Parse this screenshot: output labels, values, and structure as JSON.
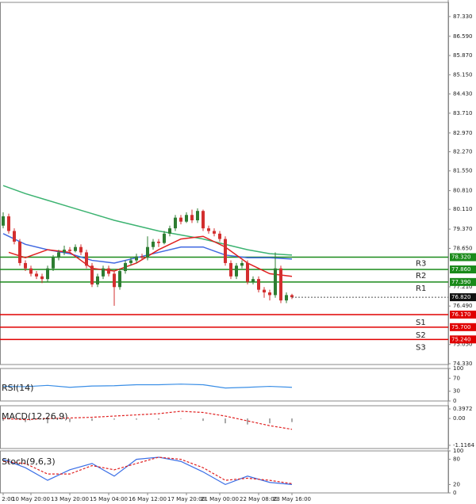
{
  "chart_data": {
    "type": "candlestick",
    "categories": [
      "2:00",
      null,
      null,
      null,
      null,
      "10 May 20:00",
      null,
      null,
      null,
      null,
      null,
      null,
      "13 May 20:00",
      null,
      null,
      null,
      null,
      null,
      null,
      "15 May 04:00",
      null,
      null,
      null,
      null,
      null,
      null,
      "16 May 12:00",
      null,
      null,
      null,
      null,
      null,
      null,
      "17 May 20:00",
      null,
      null,
      null,
      null,
      null,
      "21 May 00:00",
      null,
      null,
      null,
      null,
      null,
      null,
      "22 May 08:00",
      null,
      null,
      null,
      null,
      null,
      "23 May 16:00"
    ],
    "open": [
      79.5,
      79.85,
      79.3,
      78.9,
      78.1,
      77.9,
      77.7,
      77.6,
      77.5,
      77.9,
      78.3,
      78.5,
      78.6,
      78.55,
      78.7,
      78.5,
      78.0,
      77.3,
      77.6,
      77.9,
      77.7,
      77.2,
      77.8,
      78.1,
      78.2,
      78.35,
      78.3,
      78.7,
      78.9,
      78.85,
      79.2,
      79.4,
      79.8,
      79.65,
      79.9,
      79.7,
      80.05,
      79.4,
      79.3,
      79.2,
      79.0,
      78.1,
      77.6,
      78.0,
      78.1,
      77.4,
      77.5,
      77.1,
      77.0,
      76.9,
      77.9,
      76.7,
      76.9
    ],
    "high": [
      80.0,
      79.95,
      79.4,
      79.0,
      78.2,
      78.0,
      77.8,
      77.7,
      78.0,
      78.4,
      78.6,
      78.75,
      78.7,
      78.8,
      78.8,
      78.6,
      78.1,
      77.7,
      78.0,
      78.0,
      77.8,
      77.9,
      78.2,
      78.3,
      78.45,
      78.45,
      79.1,
      79.0,
      79.0,
      79.3,
      79.5,
      79.9,
      79.9,
      80.0,
      80.1,
      80.15,
      80.1,
      79.5,
      79.4,
      79.3,
      79.1,
      78.2,
      78.1,
      78.2,
      78.2,
      77.6,
      77.6,
      77.2,
      77.1,
      78.5,
      78.0,
      77.0,
      76.95
    ],
    "low": [
      79.4,
      79.2,
      78.8,
      78.0,
      77.8,
      77.6,
      77.5,
      77.35,
      77.4,
      77.8,
      78.2,
      78.4,
      78.45,
      78.5,
      78.4,
      77.9,
      77.2,
      77.2,
      77.5,
      77.6,
      76.5,
      77.1,
      77.7,
      78.0,
      78.1,
      78.2,
      78.2,
      78.6,
      78.7,
      78.8,
      79.1,
      79.3,
      79.55,
      79.6,
      79.6,
      79.6,
      79.3,
      79.2,
      79.1,
      78.9,
      78.0,
      77.5,
      77.5,
      77.9,
      77.3,
      77.3,
      77.0,
      76.8,
      76.7,
      76.8,
      76.6,
      76.6,
      76.75
    ],
    "close": [
      79.85,
      79.3,
      78.9,
      78.1,
      77.9,
      77.7,
      77.6,
      77.5,
      77.9,
      78.3,
      78.5,
      78.6,
      78.55,
      78.7,
      78.5,
      78.0,
      77.3,
      77.6,
      77.9,
      77.7,
      77.2,
      77.8,
      78.1,
      78.2,
      78.35,
      78.3,
      78.7,
      78.9,
      78.85,
      79.2,
      79.4,
      79.8,
      79.65,
      79.9,
      79.7,
      80.05,
      79.4,
      79.3,
      79.2,
      79.0,
      78.1,
      77.6,
      78.0,
      78.1,
      77.4,
      77.5,
      77.1,
      77.0,
      76.9,
      77.9,
      76.7,
      76.9,
      76.82
    ],
    "up_color": "#2e7d32",
    "down_color": "#d32f2f",
    "ylim": [
      74.3,
      87.86
    ],
    "yticks": [
      {
        "value": 87.33,
        "label": "87.330"
      },
      {
        "value": 86.59,
        "label": "86.590"
      },
      {
        "value": 85.87,
        "label": "85.870"
      },
      {
        "value": 85.15,
        "label": "85.150"
      },
      {
        "value": 84.43,
        "label": "84.430"
      },
      {
        "value": 83.71,
        "label": "83.710"
      },
      {
        "value": 82.97,
        "label": "82.970"
      },
      {
        "value": 82.27,
        "label": "82.270"
      },
      {
        "value": 81.55,
        "label": "81.550"
      },
      {
        "value": 80.81,
        "label": "80.810"
      },
      {
        "value": 80.11,
        "label": "80.110"
      },
      {
        "value": 79.37,
        "label": "79.370"
      },
      {
        "value": 78.65,
        "label": "78.650"
      },
      {
        "value": 77.21,
        "label": "77.210"
      },
      {
        "value": 76.49,
        "label": "76.490"
      },
      {
        "value": 75.05,
        "label": "75.050"
      },
      {
        "value": 74.33,
        "label": "74.330"
      }
    ],
    "moving_averages": [
      {
        "color": "#3cb371",
        "x": [
          0,
          4,
          8,
          12,
          16,
          20,
          24,
          28,
          32,
          36,
          40,
          44,
          48,
          52
        ],
        "values": [
          81.0,
          80.7,
          80.45,
          80.2,
          79.95,
          79.7,
          79.5,
          79.3,
          79.15,
          79.0,
          78.8,
          78.6,
          78.45,
          78.4
        ]
      },
      {
        "color": "#4169e1",
        "x": [
          0,
          4,
          8,
          12,
          16,
          20,
          24,
          28,
          32,
          36,
          40,
          44,
          48,
          52
        ],
        "values": [
          79.2,
          78.8,
          78.6,
          78.45,
          78.2,
          78.1,
          78.3,
          78.5,
          78.7,
          78.7,
          78.4,
          78.3,
          78.3,
          78.25
        ]
      },
      {
        "color": "#e02020",
        "x": [
          1,
          4,
          8,
          12,
          16,
          20,
          24,
          28,
          32,
          36,
          40,
          44,
          48,
          52
        ],
        "values": [
          78.5,
          78.3,
          78.6,
          78.5,
          77.9,
          77.8,
          78.1,
          78.6,
          79.0,
          79.1,
          78.7,
          78.1,
          77.7,
          77.6
        ]
      }
    ],
    "levels": [
      {
        "name": "R3",
        "value": 78.32,
        "value_label": "78.320",
        "color": "#1a8a1a"
      },
      {
        "name": "R2",
        "value": 77.86,
        "value_label": "77.860",
        "color": "#1a8a1a"
      },
      {
        "name": "R1",
        "value": 77.39,
        "value_label": "77.390",
        "color": "#1a8a1a"
      },
      {
        "name": "S1",
        "value": 76.17,
        "value_label": "76.170",
        "color": "#e00000"
      },
      {
        "name": "S2",
        "value": 75.7,
        "value_label": "75.700",
        "color": "#e00000"
      },
      {
        "name": "S3",
        "value": 75.24,
        "value_label": "75.240",
        "color": "#e00000"
      }
    ],
    "last_price": {
      "value": 76.82,
      "label": "76.820"
    },
    "indicators": [
      {
        "name": "RSI(14)",
        "ylim": [
          0,
          100
        ],
        "yticks": [
          100,
          70,
          30,
          0
        ],
        "x": [
          0,
          4,
          8,
          12,
          16,
          20,
          24,
          28,
          32,
          36,
          40,
          44,
          48,
          52
        ],
        "lines": [
          {
            "color": "#3a8ee6",
            "dash": false,
            "values": [
              45,
              44,
              48,
              42,
              46,
              47,
              50,
              50,
              52,
              50,
              40,
              42,
              45,
              42
            ]
          }
        ]
      },
      {
        "name": "MACD(12,26,9)",
        "ylim": [
          -1.25,
          0.53
        ],
        "yticks": [
          0.3972,
          {
            "value": 0,
            "label": "0.00"
          },
          -1.1164
        ],
        "x": [
          0,
          4,
          8,
          12,
          16,
          20,
          24,
          28,
          32,
          36,
          40,
          44,
          48,
          52
        ],
        "histogram": [
          -0.1,
          -0.15,
          -0.2,
          -0.15,
          -0.1,
          -0.05,
          -0.05,
          -0.05,
          -0.02,
          -0.1,
          -0.2,
          -0.25,
          -0.2,
          -0.15
        ],
        "lines": [
          {
            "color": "#e02020",
            "dash": true,
            "values": [
              0.0,
              -0.05,
              0.0,
              0.02,
              0.05,
              0.1,
              0.15,
              0.2,
              0.3,
              0.25,
              0.1,
              -0.1,
              -0.3,
              -0.45
            ]
          }
        ]
      },
      {
        "name": "Stoch(9,6,3)",
        "ylim": [
          0,
          100
        ],
        "yticks": [
          100,
          80,
          20,
          0
        ],
        "x": [
          0,
          4,
          8,
          12,
          16,
          20,
          24,
          28,
          32,
          36,
          40,
          44,
          48,
          52
        ],
        "lines": [
          {
            "color": "#3a6ee6",
            "dash": false,
            "values": [
              80,
              60,
              30,
              55,
              70,
              40,
              80,
              85,
              75,
              50,
              20,
              40,
              25,
              20
            ]
          },
          {
            "color": "#e02020",
            "dash": true,
            "values": [
              75,
              70,
              45,
              45,
              65,
              55,
              70,
              85,
              80,
              60,
              30,
              35,
              30,
              22
            ]
          }
        ]
      }
    ]
  }
}
